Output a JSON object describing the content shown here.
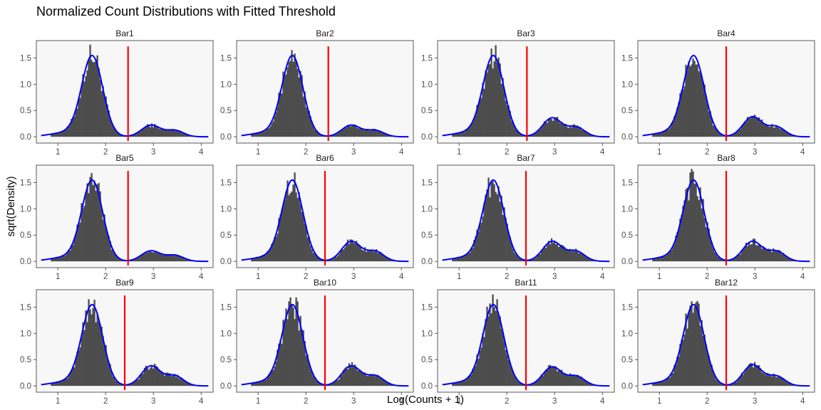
{
  "figure": {
    "title": "Normalized Count Distributions with Fitted Threshold",
    "xlabel": "Log(Counts + 1)",
    "ylabel": "sqrt(Density)"
  },
  "style": {
    "panel_background": "#f7f7f7",
    "panel_border": "#333333",
    "bar_color": "#4d4d4d",
    "density_color": "#0000ff",
    "threshold_color": "#ff0000"
  },
  "chart_data": {
    "type": "histogram-with-density",
    "layout": {
      "rows": 3,
      "cols": 4
    },
    "xlim": [
      0.55,
      4.25
    ],
    "ylim": [
      -0.12,
      1.83
    ],
    "x_ticks": [
      1,
      2,
      3,
      4
    ],
    "y_ticks": [
      0.0,
      0.5,
      1.0,
      1.5
    ],
    "y_tick_labels": [
      "0.0",
      "0.5",
      "1.0",
      "1.5"
    ],
    "panels": [
      {
        "label": "Bar1",
        "threshold": 2.47,
        "peak": 1.72,
        "bump1": 0.22,
        "bump2": 0.16
      },
      {
        "label": "Bar2",
        "threshold": 2.47,
        "peak": 1.72,
        "bump1": 0.22,
        "bump2": 0.16
      },
      {
        "label": "Bar3",
        "threshold": 2.42,
        "peak": 1.72,
        "bump1": 0.36,
        "bump2": 0.24
      },
      {
        "label": "Bar4",
        "threshold": 2.4,
        "peak": 1.72,
        "bump1": 0.38,
        "bump2": 0.25
      },
      {
        "label": "Bar5",
        "threshold": 2.47,
        "peak": 1.72,
        "bump1": 0.2,
        "bump2": 0.15
      },
      {
        "label": "Bar6",
        "threshold": 2.4,
        "peak": 1.72,
        "bump1": 0.38,
        "bump2": 0.25
      },
      {
        "label": "Bar7",
        "threshold": 2.4,
        "peak": 1.72,
        "bump1": 0.38,
        "bump2": 0.25
      },
      {
        "label": "Bar8",
        "threshold": 2.4,
        "peak": 1.72,
        "bump1": 0.38,
        "bump2": 0.25
      },
      {
        "label": "Bar9",
        "threshold": 2.4,
        "peak": 1.72,
        "bump1": 0.38,
        "bump2": 0.25
      },
      {
        "label": "Bar10",
        "threshold": 2.4,
        "peak": 1.72,
        "bump1": 0.38,
        "bump2": 0.25
      },
      {
        "label": "Bar11",
        "threshold": 2.4,
        "peak": 1.72,
        "bump1": 0.36,
        "bump2": 0.24
      },
      {
        "label": "Bar12",
        "threshold": 2.4,
        "peak": 1.72,
        "bump1": 0.4,
        "bump2": 0.24
      }
    ]
  }
}
